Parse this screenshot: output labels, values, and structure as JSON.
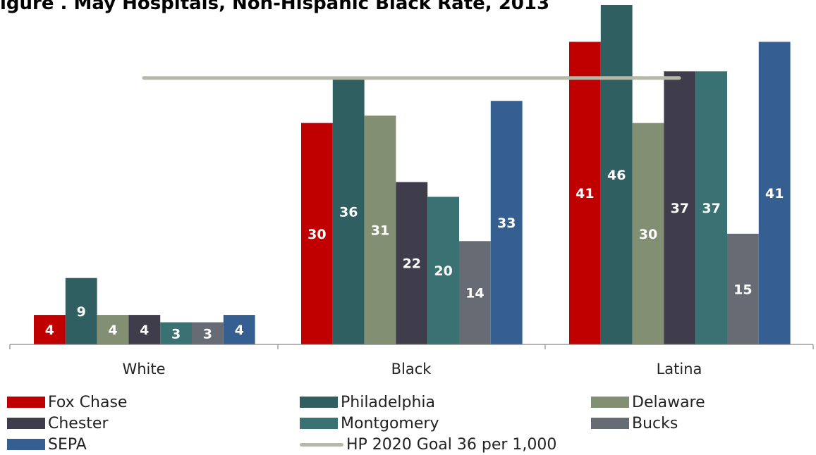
{
  "title": "igure . May Hospitals, Non-Hispanic Black Rate, 2013",
  "chart_data": {
    "type": "bar",
    "categories": [
      "White",
      "Black",
      "Latina"
    ],
    "ylim": [
      0,
      46
    ],
    "grid": false,
    "legend_position": "bottom",
    "series": [
      {
        "name": "Fox Chase",
        "color": "#c00000",
        "values": [
          4,
          30,
          41
        ]
      },
      {
        "name": "Philadelphia",
        "color": "#2f5f60",
        "values": [
          9,
          36,
          46
        ]
      },
      {
        "name": "Delaware",
        "color": "#838f72",
        "values": [
          4,
          31,
          30
        ]
      },
      {
        "name": "Chester",
        "color": "#3f3c4b",
        "values": [
          4,
          22,
          37
        ]
      },
      {
        "name": "Montgomery",
        "color": "#3a7273",
        "values": [
          3,
          20,
          37
        ]
      },
      {
        "name": "Bucks",
        "color": "#676b73",
        "values": [
          3,
          14,
          15
        ]
      },
      {
        "name": "SEPA",
        "color": "#355f91",
        "values": [
          4,
          33,
          41
        ]
      }
    ],
    "goal_line": {
      "name": "HP 2020 Goal 36 per 1,000",
      "value": 36,
      "color": "#b6b8a8"
    }
  }
}
